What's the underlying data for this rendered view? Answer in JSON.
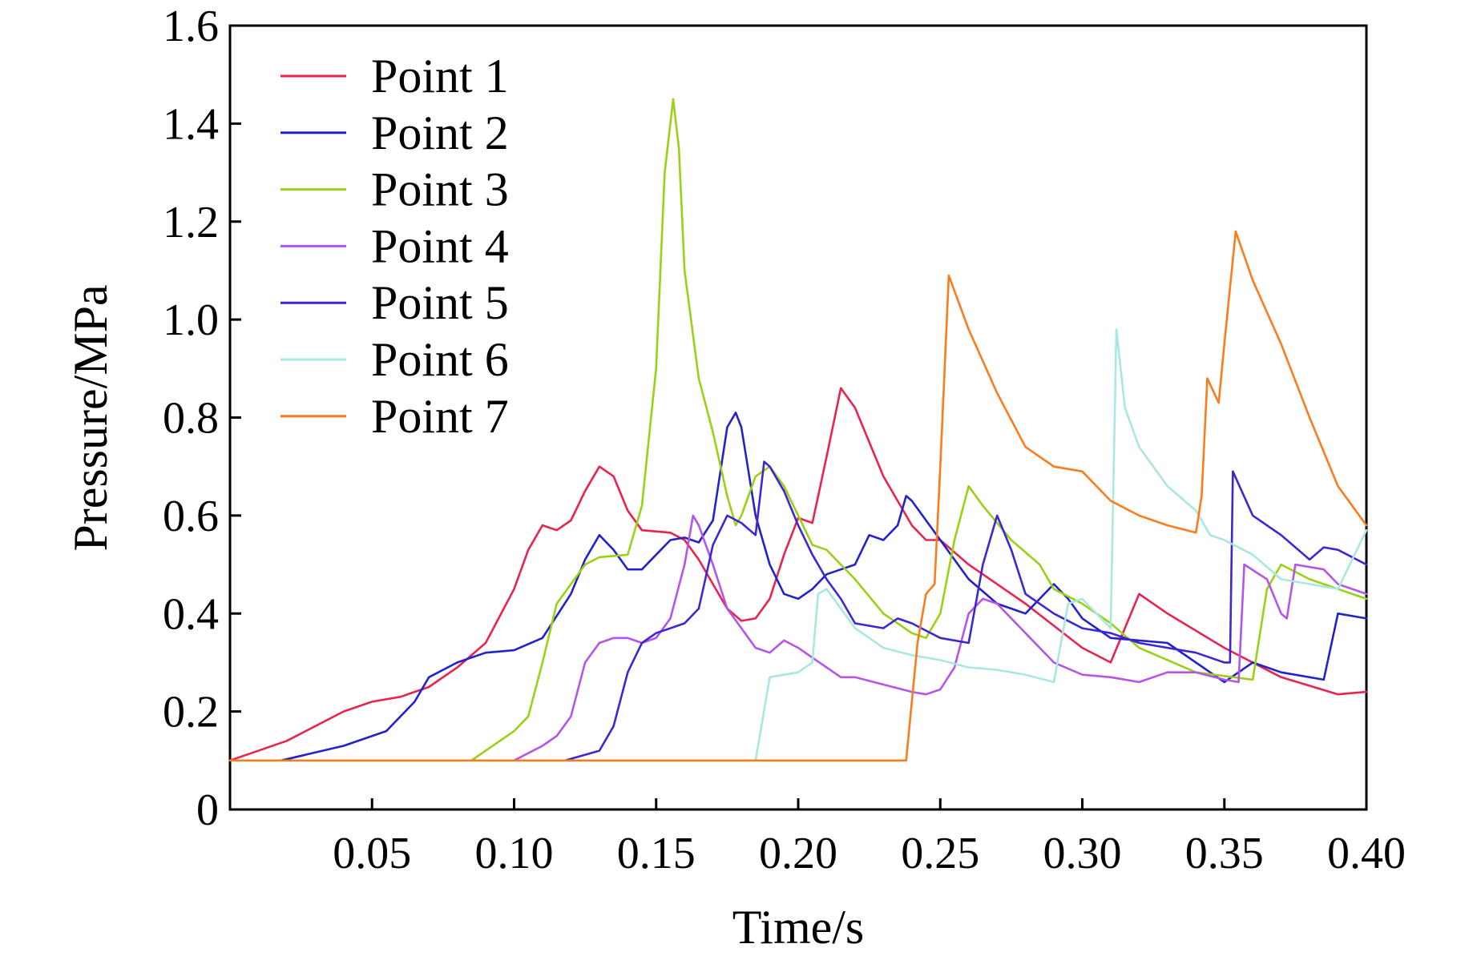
{
  "chart_data": {
    "type": "line",
    "title": "",
    "xlabel": "Time/s",
    "ylabel": "Pressure/MPa",
    "xlim": [
      0,
      0.4
    ],
    "ylim": [
      0,
      1.6
    ],
    "x_ticks": [
      0.05,
      0.1,
      0.15,
      0.2,
      0.25,
      0.3,
      0.35,
      0.4
    ],
    "x_tick_labels": [
      "0.05",
      "0.10",
      "0.15",
      "0.20",
      "0.25",
      "0.30",
      "0.35",
      "0.40"
    ],
    "y_ticks": [
      0,
      0.2,
      0.4,
      0.6,
      0.8,
      1.0,
      1.2,
      1.4,
      1.6
    ],
    "y_tick_labels": [
      "0",
      "0.2",
      "0.4",
      "0.6",
      "0.8",
      "1.0",
      "1.2",
      "1.4",
      "1.6"
    ],
    "grid": false,
    "legend_position": "top-left",
    "series": [
      {
        "name": "Point 1",
        "color": "#e8244e",
        "points": [
          [
            0,
            0.1
          ],
          [
            0.02,
            0.14
          ],
          [
            0.04,
            0.2
          ],
          [
            0.05,
            0.22
          ],
          [
            0.06,
            0.23
          ],
          [
            0.07,
            0.25
          ],
          [
            0.08,
            0.29
          ],
          [
            0.09,
            0.34
          ],
          [
            0.1,
            0.45
          ],
          [
            0.105,
            0.53
          ],
          [
            0.11,
            0.58
          ],
          [
            0.115,
            0.57
          ],
          [
            0.12,
            0.59
          ],
          [
            0.125,
            0.65
          ],
          [
            0.13,
            0.7
          ],
          [
            0.135,
            0.68
          ],
          [
            0.14,
            0.61
          ],
          [
            0.145,
            0.57
          ],
          [
            0.155,
            0.565
          ],
          [
            0.16,
            0.55
          ],
          [
            0.165,
            0.51
          ],
          [
            0.17,
            0.46
          ],
          [
            0.175,
            0.41
          ],
          [
            0.18,
            0.385
          ],
          [
            0.185,
            0.39
          ],
          [
            0.19,
            0.43
          ],
          [
            0.195,
            0.52
          ],
          [
            0.2,
            0.595
          ],
          [
            0.205,
            0.585
          ],
          [
            0.21,
            0.72
          ],
          [
            0.215,
            0.86
          ],
          [
            0.22,
            0.82
          ],
          [
            0.23,
            0.68
          ],
          [
            0.24,
            0.58
          ],
          [
            0.245,
            0.55
          ],
          [
            0.25,
            0.55
          ],
          [
            0.26,
            0.5
          ],
          [
            0.28,
            0.42
          ],
          [
            0.3,
            0.33
          ],
          [
            0.31,
            0.3
          ],
          [
            0.32,
            0.44
          ],
          [
            0.33,
            0.4
          ],
          [
            0.35,
            0.33
          ],
          [
            0.37,
            0.27
          ],
          [
            0.39,
            0.235
          ],
          [
            0.4,
            0.24
          ]
        ]
      },
      {
        "name": "Point 2",
        "color": "#2222cc",
        "points": [
          [
            0.018,
            0.1
          ],
          [
            0.04,
            0.13
          ],
          [
            0.055,
            0.16
          ],
          [
            0.065,
            0.22
          ],
          [
            0.07,
            0.27
          ],
          [
            0.08,
            0.3
          ],
          [
            0.09,
            0.32
          ],
          [
            0.1,
            0.325
          ],
          [
            0.11,
            0.35
          ],
          [
            0.12,
            0.44
          ],
          [
            0.125,
            0.51
          ],
          [
            0.13,
            0.56
          ],
          [
            0.135,
            0.53
          ],
          [
            0.14,
            0.49
          ],
          [
            0.145,
            0.49
          ],
          [
            0.15,
            0.52
          ],
          [
            0.155,
            0.55
          ],
          [
            0.16,
            0.555
          ],
          [
            0.165,
            0.545
          ],
          [
            0.17,
            0.59
          ],
          [
            0.175,
            0.78
          ],
          [
            0.178,
            0.81
          ],
          [
            0.18,
            0.78
          ],
          [
            0.185,
            0.6
          ],
          [
            0.19,
            0.5
          ],
          [
            0.195,
            0.44
          ],
          [
            0.2,
            0.43
          ],
          [
            0.205,
            0.45
          ],
          [
            0.21,
            0.48
          ],
          [
            0.215,
            0.49
          ],
          [
            0.22,
            0.5
          ],
          [
            0.225,
            0.56
          ],
          [
            0.23,
            0.55
          ],
          [
            0.235,
            0.58
          ],
          [
            0.238,
            0.64
          ],
          [
            0.24,
            0.63
          ],
          [
            0.25,
            0.55
          ],
          [
            0.26,
            0.47
          ],
          [
            0.27,
            0.42
          ],
          [
            0.28,
            0.4
          ],
          [
            0.29,
            0.46
          ],
          [
            0.295,
            0.43
          ],
          [
            0.3,
            0.39
          ],
          [
            0.31,
            0.35
          ],
          [
            0.33,
            0.34
          ],
          [
            0.345,
            0.28
          ],
          [
            0.35,
            0.26
          ],
          [
            0.36,
            0.3
          ],
          [
            0.37,
            0.28
          ],
          [
            0.385,
            0.265
          ],
          [
            0.39,
            0.4
          ],
          [
            0.4,
            0.39
          ]
        ]
      },
      {
        "name": "Point 3",
        "color": "#99d214",
        "points": [
          [
            0.085,
            0.1
          ],
          [
            0.09,
            0.12
          ],
          [
            0.1,
            0.16
          ],
          [
            0.105,
            0.19
          ],
          [
            0.11,
            0.3
          ],
          [
            0.115,
            0.42
          ],
          [
            0.12,
            0.46
          ],
          [
            0.125,
            0.5
          ],
          [
            0.13,
            0.515
          ],
          [
            0.14,
            0.52
          ],
          [
            0.145,
            0.62
          ],
          [
            0.15,
            0.9
          ],
          [
            0.153,
            1.3
          ],
          [
            0.156,
            1.45
          ],
          [
            0.158,
            1.35
          ],
          [
            0.16,
            1.1
          ],
          [
            0.165,
            0.88
          ],
          [
            0.17,
            0.77
          ],
          [
            0.175,
            0.64
          ],
          [
            0.178,
            0.58
          ],
          [
            0.18,
            0.6
          ],
          [
            0.185,
            0.68
          ],
          [
            0.19,
            0.7
          ],
          [
            0.195,
            0.66
          ],
          [
            0.2,
            0.6
          ],
          [
            0.205,
            0.54
          ],
          [
            0.21,
            0.53
          ],
          [
            0.215,
            0.5
          ],
          [
            0.22,
            0.47
          ],
          [
            0.23,
            0.4
          ],
          [
            0.24,
            0.36
          ],
          [
            0.245,
            0.35
          ],
          [
            0.25,
            0.4
          ],
          [
            0.255,
            0.55
          ],
          [
            0.26,
            0.66
          ],
          [
            0.265,
            0.62
          ],
          [
            0.275,
            0.55
          ],
          [
            0.285,
            0.5
          ],
          [
            0.29,
            0.45
          ],
          [
            0.3,
            0.42
          ],
          [
            0.31,
            0.38
          ],
          [
            0.32,
            0.33
          ],
          [
            0.34,
            0.28
          ],
          [
            0.36,
            0.265
          ],
          [
            0.365,
            0.45
          ],
          [
            0.37,
            0.5
          ],
          [
            0.38,
            0.47
          ],
          [
            0.39,
            0.45
          ],
          [
            0.4,
            0.43
          ]
        ]
      },
      {
        "name": "Point 4",
        "color": "#b455e8",
        "points": [
          [
            0.1,
            0.1
          ],
          [
            0.11,
            0.13
          ],
          [
            0.115,
            0.15
          ],
          [
            0.12,
            0.19
          ],
          [
            0.125,
            0.3
          ],
          [
            0.13,
            0.34
          ],
          [
            0.135,
            0.35
          ],
          [
            0.14,
            0.35
          ],
          [
            0.145,
            0.34
          ],
          [
            0.15,
            0.35
          ],
          [
            0.155,
            0.39
          ],
          [
            0.16,
            0.5
          ],
          [
            0.163,
            0.6
          ],
          [
            0.165,
            0.58
          ],
          [
            0.17,
            0.5
          ],
          [
            0.175,
            0.41
          ],
          [
            0.18,
            0.37
          ],
          [
            0.185,
            0.33
          ],
          [
            0.19,
            0.32
          ],
          [
            0.195,
            0.345
          ],
          [
            0.2,
            0.33
          ],
          [
            0.21,
            0.29
          ],
          [
            0.215,
            0.27
          ],
          [
            0.22,
            0.27
          ],
          [
            0.23,
            0.255
          ],
          [
            0.24,
            0.24
          ],
          [
            0.245,
            0.235
          ],
          [
            0.25,
            0.245
          ],
          [
            0.255,
            0.29
          ],
          [
            0.26,
            0.4
          ],
          [
            0.265,
            0.43
          ],
          [
            0.27,
            0.42
          ],
          [
            0.28,
            0.36
          ],
          [
            0.29,
            0.3
          ],
          [
            0.3,
            0.275
          ],
          [
            0.31,
            0.27
          ],
          [
            0.32,
            0.26
          ],
          [
            0.33,
            0.28
          ],
          [
            0.34,
            0.28
          ],
          [
            0.35,
            0.265
          ],
          [
            0.355,
            0.26
          ],
          [
            0.357,
            0.5
          ],
          [
            0.365,
            0.47
          ],
          [
            0.37,
            0.4
          ],
          [
            0.372,
            0.39
          ],
          [
            0.375,
            0.5
          ],
          [
            0.385,
            0.49
          ],
          [
            0.39,
            0.46
          ],
          [
            0.4,
            0.44
          ]
        ]
      },
      {
        "name": "Point 5",
        "color": "#3c28d2",
        "points": [
          [
            0.118,
            0.1
          ],
          [
            0.13,
            0.12
          ],
          [
            0.135,
            0.17
          ],
          [
            0.14,
            0.28
          ],
          [
            0.145,
            0.34
          ],
          [
            0.15,
            0.36
          ],
          [
            0.155,
            0.37
          ],
          [
            0.16,
            0.38
          ],
          [
            0.165,
            0.41
          ],
          [
            0.17,
            0.54
          ],
          [
            0.175,
            0.6
          ],
          [
            0.18,
            0.585
          ],
          [
            0.185,
            0.56
          ],
          [
            0.188,
            0.71
          ],
          [
            0.19,
            0.7
          ],
          [
            0.195,
            0.65
          ],
          [
            0.2,
            0.58
          ],
          [
            0.205,
            0.52
          ],
          [
            0.21,
            0.47
          ],
          [
            0.215,
            0.43
          ],
          [
            0.22,
            0.38
          ],
          [
            0.23,
            0.37
          ],
          [
            0.235,
            0.39
          ],
          [
            0.24,
            0.38
          ],
          [
            0.25,
            0.35
          ],
          [
            0.26,
            0.34
          ],
          [
            0.265,
            0.5
          ],
          [
            0.27,
            0.6
          ],
          [
            0.275,
            0.53
          ],
          [
            0.28,
            0.44
          ],
          [
            0.29,
            0.4
          ],
          [
            0.3,
            0.37
          ],
          [
            0.31,
            0.36
          ],
          [
            0.32,
            0.34
          ],
          [
            0.33,
            0.33
          ],
          [
            0.34,
            0.32
          ],
          [
            0.35,
            0.3
          ],
          [
            0.352,
            0.3
          ],
          [
            0.353,
            0.69
          ],
          [
            0.36,
            0.6
          ],
          [
            0.37,
            0.56
          ],
          [
            0.38,
            0.51
          ],
          [
            0.385,
            0.535
          ],
          [
            0.39,
            0.53
          ],
          [
            0.4,
            0.5
          ]
        ]
      },
      {
        "name": "Point 6",
        "color": "#a8e8e0",
        "points": [
          [
            0.185,
            0.1
          ],
          [
            0.19,
            0.27
          ],
          [
            0.2,
            0.28
          ],
          [
            0.205,
            0.3
          ],
          [
            0.207,
            0.44
          ],
          [
            0.21,
            0.45
          ],
          [
            0.215,
            0.41
          ],
          [
            0.22,
            0.37
          ],
          [
            0.23,
            0.33
          ],
          [
            0.24,
            0.315
          ],
          [
            0.25,
            0.305
          ],
          [
            0.26,
            0.29
          ],
          [
            0.27,
            0.285
          ],
          [
            0.28,
            0.275
          ],
          [
            0.29,
            0.26
          ],
          [
            0.295,
            0.42
          ],
          [
            0.3,
            0.43
          ],
          [
            0.305,
            0.4
          ],
          [
            0.31,
            0.37
          ],
          [
            0.312,
            0.98
          ],
          [
            0.315,
            0.82
          ],
          [
            0.32,
            0.74
          ],
          [
            0.33,
            0.66
          ],
          [
            0.34,
            0.61
          ],
          [
            0.345,
            0.56
          ],
          [
            0.35,
            0.55
          ],
          [
            0.36,
            0.52
          ],
          [
            0.37,
            0.47
          ],
          [
            0.38,
            0.46
          ],
          [
            0.39,
            0.45
          ],
          [
            0.4,
            0.57
          ]
        ]
      },
      {
        "name": "Point 7",
        "color": "#fa7c1c",
        "points": [
          [
            0,
            0.1
          ],
          [
            0.238,
            0.1
          ],
          [
            0.242,
            0.34
          ],
          [
            0.245,
            0.44
          ],
          [
            0.248,
            0.46
          ],
          [
            0.25,
            0.7
          ],
          [
            0.253,
            1.09
          ],
          [
            0.26,
            0.98
          ],
          [
            0.27,
            0.85
          ],
          [
            0.28,
            0.74
          ],
          [
            0.29,
            0.7
          ],
          [
            0.3,
            0.69
          ],
          [
            0.31,
            0.63
          ],
          [
            0.32,
            0.6
          ],
          [
            0.33,
            0.58
          ],
          [
            0.34,
            0.565
          ],
          [
            0.342,
            0.64
          ],
          [
            0.344,
            0.88
          ],
          [
            0.348,
            0.83
          ],
          [
            0.35,
            0.95
          ],
          [
            0.354,
            1.18
          ],
          [
            0.36,
            1.08
          ],
          [
            0.37,
            0.95
          ],
          [
            0.38,
            0.8
          ],
          [
            0.39,
            0.66
          ],
          [
            0.4,
            0.58
          ]
        ]
      }
    ]
  }
}
